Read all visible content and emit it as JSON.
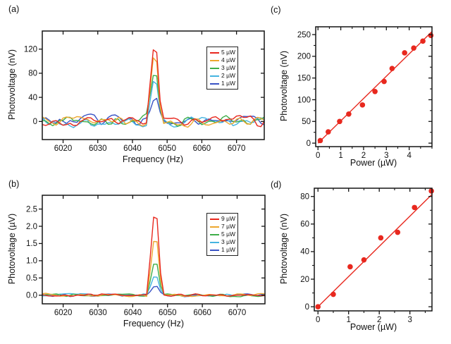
{
  "figure_title": "",
  "chart_data": [
    {
      "id": "a",
      "panel_label": "(a)",
      "type": "line",
      "xlabel": "Frequency (Hz)",
      "ylabel": "Photovoltage (nV)",
      "xlim": [
        6014,
        6078
      ],
      "ylim": [
        -30,
        150
      ],
      "xticks": [
        6020,
        6030,
        6040,
        6050,
        6060,
        6070
      ],
      "xtick_labels": [
        "6020",
        "6030",
        "6040",
        "6050",
        "6060",
        "6070"
      ],
      "yticks": [
        0,
        40,
        80,
        120
      ],
      "ytick_labels": [
        "0",
        "40",
        "80",
        "120"
      ],
      "grid": false,
      "legend_position": "upper right",
      "peak_center_hz": 6046.4,
      "peak_width_hz": 1.5,
      "noise_amplitude": 8,
      "series": [
        {
          "name": "5 µW",
          "color": "#e8281e",
          "peak_height_nv": 128
        },
        {
          "name": "4 µW",
          "color": "#eda72f",
          "peak_height_nv": 101
        },
        {
          "name": "3 µW",
          "color": "#3fae49",
          "peak_height_nv": 75
        },
        {
          "name": "2 µW",
          "color": "#45b4e0",
          "peak_height_nv": 62
        },
        {
          "name": "1 µW",
          "color": "#3a53c5",
          "peak_height_nv": 32
        }
      ]
    },
    {
      "id": "b",
      "panel_label": "(b)",
      "type": "line",
      "xlabel": "Frequency (Hz)",
      "ylabel": "Photovoltage (µV)",
      "xlim": [
        6014,
        6078
      ],
      "ylim": [
        -0.25,
        2.9
      ],
      "xticks": [
        6020,
        6030,
        6040,
        6050,
        6060,
        6070
      ],
      "xtick_labels": [
        "6020",
        "6030",
        "6040",
        "6050",
        "6060",
        "6070"
      ],
      "yticks": [
        0,
        0.5,
        1,
        1.5,
        2,
        2.5
      ],
      "ytick_labels": [
        "0.0",
        "0.5",
        "1.0",
        "1.5",
        "2.0",
        "2.5"
      ],
      "grid": false,
      "legend_position": "upper right",
      "peak_center_hz": 6046.4,
      "peak_width_hz": 1.5,
      "noise_amplitude": 0.035,
      "series": [
        {
          "name": "9 µW",
          "color": "#e8281e",
          "peak_height_uv": 2.3
        },
        {
          "name": "7 µW",
          "color": "#eda72f",
          "peak_height_uv": 1.6
        },
        {
          "name": "5 µW",
          "color": "#3fae49",
          "peak_height_uv": 0.95
        },
        {
          "name": "3 µW",
          "color": "#45b4e0",
          "peak_height_uv": 0.52
        },
        {
          "name": "1 µW",
          "color": "#3a53c5",
          "peak_height_uv": 0.27
        }
      ]
    },
    {
      "id": "c",
      "panel_label": "(c)",
      "type": "scatter",
      "xlabel": "Power (µW)",
      "ylabel": "Photovoltage (nV)",
      "xlim": [
        -0.1,
        5.0
      ],
      "ylim": [
        -8,
        268
      ],
      "xticks": [
        0,
        1,
        2,
        3,
        4
      ],
      "xtick_labels": [
        "0",
        "1",
        "2",
        "3",
        "4"
      ],
      "yticks": [
        0,
        50,
        100,
        150,
        200,
        250
      ],
      "ytick_labels": [
        "0",
        "50",
        "100",
        "150",
        "200",
        "250"
      ],
      "xminor_step": 0.5,
      "yminor_step": 25,
      "grid": false,
      "marker_color": "#e8281e",
      "points": [
        [
          0.1,
          6
        ],
        [
          0.45,
          26
        ],
        [
          0.95,
          50
        ],
        [
          1.35,
          67
        ],
        [
          1.95,
          88
        ],
        [
          2.5,
          119
        ],
        [
          2.9,
          142
        ],
        [
          3.25,
          172
        ],
        [
          3.8,
          208
        ],
        [
          4.2,
          219
        ],
        [
          4.6,
          235
        ],
        [
          4.95,
          248
        ]
      ],
      "fit_line": {
        "x": [
          0,
          5.0
        ],
        "y": [
          0,
          257
        ],
        "color": "#e8281e"
      }
    },
    {
      "id": "d",
      "panel_label": "(d)",
      "type": "scatter",
      "xlabel": "Power (µW)",
      "ylabel": "Photovoltage (nV)",
      "xlim": [
        -0.12,
        3.72
      ],
      "ylim": [
        -3,
        86
      ],
      "xticks": [
        0,
        1,
        2,
        3
      ],
      "xtick_labels": [
        "0",
        "1",
        "2",
        "3"
      ],
      "yticks": [
        0,
        20,
        40,
        60,
        80
      ],
      "ytick_labels": [
        "0",
        "20",
        "40",
        "60",
        "80"
      ],
      "xminor_step": 0.5,
      "yminor_step": 10,
      "grid": false,
      "marker_color": "#e8281e",
      "points": [
        [
          0,
          0
        ],
        [
          0.5,
          9
        ],
        [
          1.05,
          29
        ],
        [
          1.5,
          34
        ],
        [
          2.05,
          50
        ],
        [
          2.6,
          54
        ],
        [
          3.15,
          72
        ],
        [
          3.7,
          84
        ]
      ],
      "fit_line": {
        "x": [
          0,
          3.72
        ],
        "y": [
          0,
          81.5
        ],
        "color": "#e8281e"
      }
    }
  ],
  "style": {
    "axis_color": "#141414",
    "text_color": "#111111",
    "background": "#ffffff"
  }
}
